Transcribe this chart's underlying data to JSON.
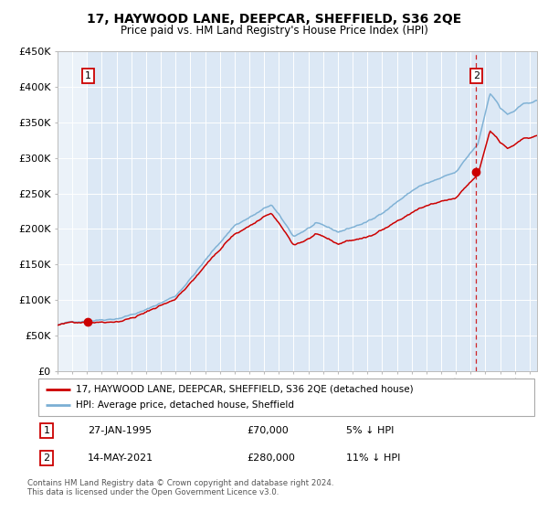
{
  "title": "17, HAYWOOD LANE, DEEPCAR, SHEFFIELD, S36 2QE",
  "subtitle": "Price paid vs. HM Land Registry's House Price Index (HPI)",
  "legend_line1": "17, HAYWOOD LANE, DEEPCAR, SHEFFIELD, S36 2QE (detached house)",
  "legend_line2": "HPI: Average price, detached house, Sheffield",
  "sale1_label": "1",
  "sale1_date": "27-JAN-1995",
  "sale1_price": "£70,000",
  "sale1_hpi": "5% ↓ HPI",
  "sale1_year": 1995.07,
  "sale1_value": 70000,
  "sale2_label": "2",
  "sale2_date": "14-MAY-2021",
  "sale2_price": "£280,000",
  "sale2_hpi": "11% ↓ HPI",
  "sale2_year": 2021.37,
  "sale2_value": 280000,
  "hpi_color": "#7bafd4",
  "property_color": "#cc0000",
  "dot_color": "#cc0000",
  "dashed_color": "#cc0000",
  "background_color": "#dce8f5",
  "ylim": [
    0,
    450000
  ],
  "yticks": [
    0,
    50000,
    100000,
    150000,
    200000,
    250000,
    300000,
    350000,
    400000,
    450000
  ],
  "footnote": "Contains HM Land Registry data © Crown copyright and database right 2024.\nThis data is licensed under the Open Government Licence v3.0.",
  "xmin": 1993.0,
  "xmax": 2025.5
}
